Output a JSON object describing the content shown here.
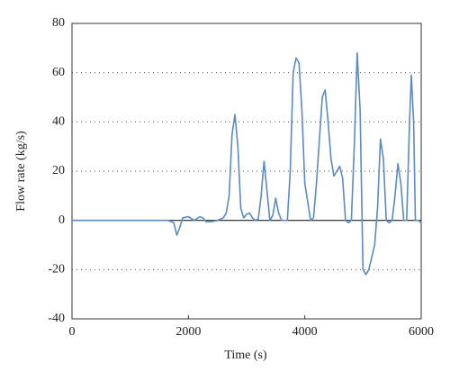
{
  "chart_data": {
    "type": "line",
    "x_label": "Time (s)",
    "y_label": "Flow rate (kg/s)",
    "x": [
      0,
      1650,
      1750,
      1800,
      1850,
      1900,
      2000,
      2100,
      2200,
      2250,
      2300,
      2400,
      2500,
      2600,
      2650,
      2700,
      2750,
      2800,
      2850,
      2900,
      2950,
      3000,
      3050,
      3100,
      3150,
      3200,
      3250,
      3300,
      3350,
      3400,
      3450,
      3500,
      3550,
      3600,
      3700,
      3750,
      3800,
      3850,
      3900,
      3950,
      4000,
      4100,
      4150,
      4200,
      4300,
      4350,
      4400,
      4450,
      4500,
      4550,
      4600,
      4650,
      4700,
      4750,
      4800,
      4850,
      4900,
      4950,
      5000,
      5050,
      5100,
      5200,
      5250,
      5300,
      5350,
      5400,
      5450,
      5500,
      5550,
      5600,
      5650,
      5700,
      5750,
      5800,
      5830,
      5870,
      5900,
      5950,
      6000
    ],
    "series": [
      {
        "color": "#5b8ac4",
        "values": [
          0,
          0,
          -1,
          -6,
          -3,
          1,
          1.5,
          0,
          1.5,
          1,
          -0.5,
          -0.5,
          0,
          1,
          3,
          10,
          35,
          43,
          30,
          5,
          1,
          2.5,
          3,
          1,
          0,
          0.5,
          10,
          24,
          12,
          0,
          2,
          9,
          3,
          0,
          0,
          20,
          60,
          66,
          64,
          45,
          15,
          0,
          1,
          15,
          50,
          53,
          40,
          25,
          18,
          20,
          22,
          17,
          0,
          -1,
          0,
          30,
          68,
          45,
          -20,
          -22,
          -20,
          -10,
          5,
          33,
          25,
          0,
          -1,
          0,
          10,
          23,
          15,
          0,
          0,
          40,
          59,
          40,
          0,
          0,
          -1
        ]
      }
    ],
    "xlim": [
      0,
      6000
    ],
    "xticks": [
      0,
      2000,
      4000,
      6000
    ],
    "ylim": [
      -40,
      80
    ],
    "yticks": [
      -40,
      -20,
      0,
      20,
      40,
      60,
      80
    ],
    "grid": true
  }
}
